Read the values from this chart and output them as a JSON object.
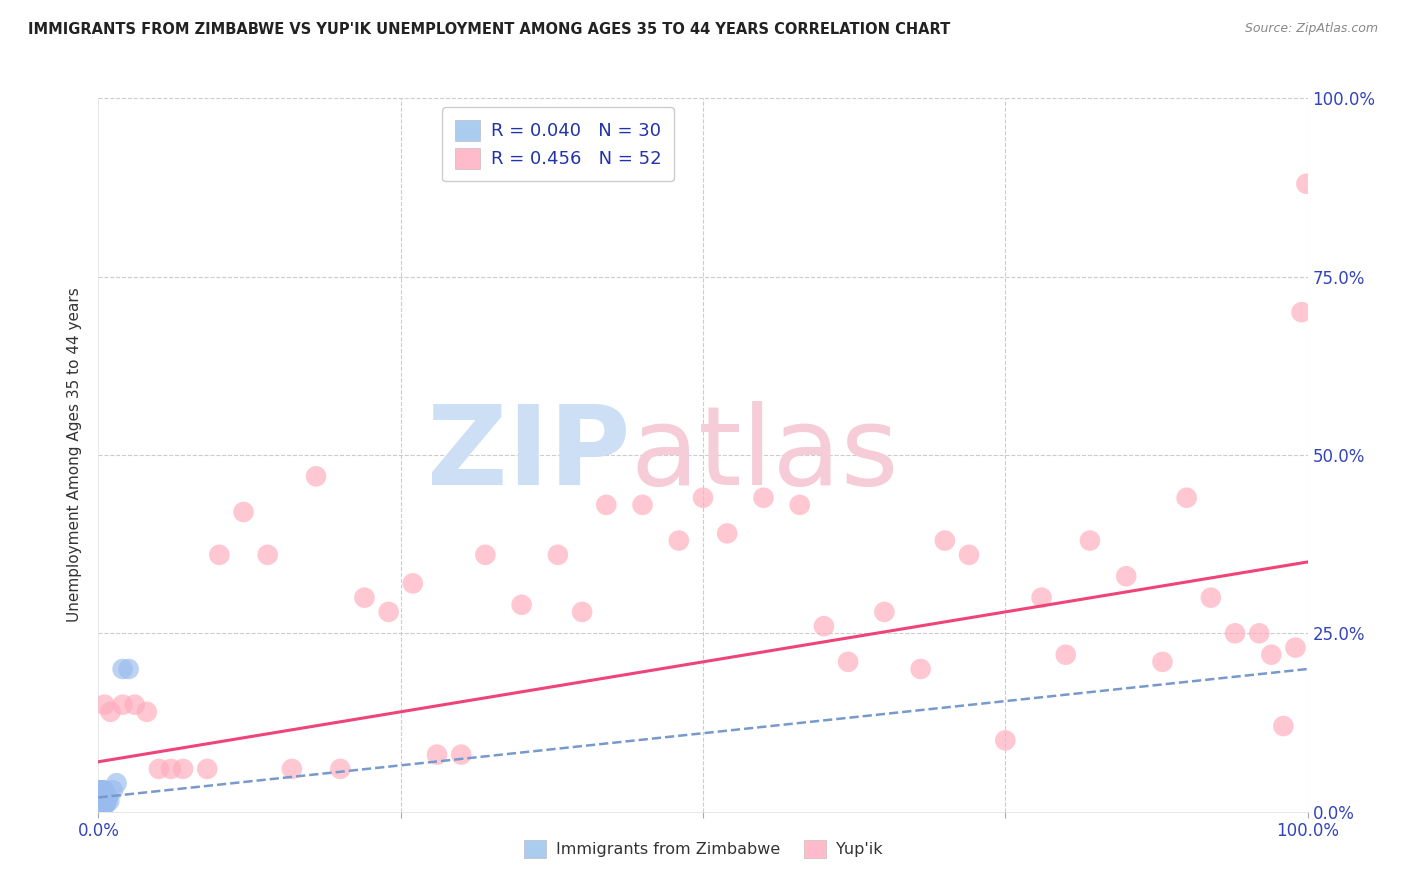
{
  "title": "IMMIGRANTS FROM ZIMBABWE VS YUP'IK UNEMPLOYMENT AMONG AGES 35 TO 44 YEARS CORRELATION CHART",
  "source": "Source: ZipAtlas.com",
  "ylabel": "Unemployment Among Ages 35 to 44 years",
  "xlim": [
    0,
    1
  ],
  "ylim": [
    0,
    1
  ],
  "background_color": "#ffffff",
  "blue_color": "#99bbee",
  "pink_color": "#ffaabb",
  "blue_line_color": "#7799cc",
  "pink_line_color": "#ee4477",
  "legend_text1": "R = 0.040   N = 30",
  "legend_text2": "R = 0.456   N = 52",
  "series1_label": "Immigrants from Zimbabwe",
  "series2_label": "Yup'ik",
  "series1_x": [
    0.001,
    0.001,
    0.001,
    0.001,
    0.001,
    0.001,
    0.002,
    0.002,
    0.002,
    0.002,
    0.002,
    0.003,
    0.003,
    0.003,
    0.003,
    0.004,
    0.004,
    0.004,
    0.005,
    0.005,
    0.005,
    0.006,
    0.006,
    0.007,
    0.008,
    0.009,
    0.012,
    0.015,
    0.02,
    0.025
  ],
  "series1_y": [
    0.005,
    0.01,
    0.015,
    0.02,
    0.025,
    0.03,
    0.005,
    0.01,
    0.02,
    0.025,
    0.03,
    0.005,
    0.01,
    0.02,
    0.03,
    0.01,
    0.02,
    0.03,
    0.01,
    0.02,
    0.03,
    0.01,
    0.02,
    0.015,
    0.02,
    0.015,
    0.03,
    0.04,
    0.2,
    0.2
  ],
  "series2_x": [
    0.005,
    0.01,
    0.02,
    0.03,
    0.04,
    0.05,
    0.06,
    0.07,
    0.09,
    0.1,
    0.12,
    0.14,
    0.16,
    0.18,
    0.2,
    0.22,
    0.24,
    0.26,
    0.28,
    0.3,
    0.32,
    0.35,
    0.38,
    0.4,
    0.42,
    0.45,
    0.48,
    0.5,
    0.52,
    0.55,
    0.58,
    0.6,
    0.62,
    0.65,
    0.68,
    0.7,
    0.72,
    0.75,
    0.78,
    0.8,
    0.82,
    0.85,
    0.88,
    0.9,
    0.92,
    0.94,
    0.96,
    0.97,
    0.98,
    0.99,
    0.995,
    0.999
  ],
  "series2_y": [
    0.15,
    0.14,
    0.15,
    0.15,
    0.14,
    0.06,
    0.06,
    0.06,
    0.06,
    0.36,
    0.42,
    0.36,
    0.06,
    0.47,
    0.06,
    0.3,
    0.28,
    0.32,
    0.08,
    0.08,
    0.36,
    0.29,
    0.36,
    0.28,
    0.43,
    0.43,
    0.38,
    0.44,
    0.39,
    0.44,
    0.43,
    0.26,
    0.21,
    0.28,
    0.2,
    0.38,
    0.36,
    0.1,
    0.3,
    0.22,
    0.38,
    0.33,
    0.21,
    0.44,
    0.3,
    0.25,
    0.25,
    0.22,
    0.12,
    0.23,
    0.7,
    0.88
  ]
}
